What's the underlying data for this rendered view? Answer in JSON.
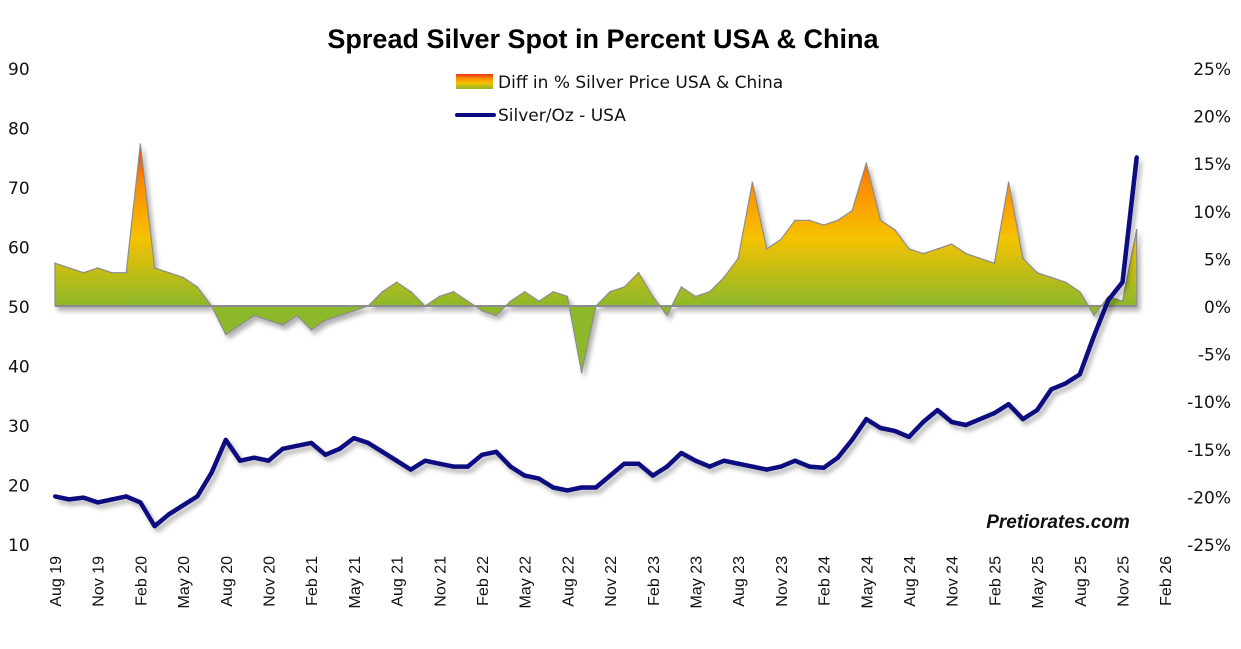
{
  "chart_data": {
    "type": "area+line",
    "title": "Spread Silver Spot in Percent USA & China",
    "x_tick_labels": [
      "Aug 19",
      "Nov 19",
      "Feb 20",
      "May 20",
      "Aug 20",
      "Nov 20",
      "Feb 21",
      "May 21",
      "Aug 21",
      "Nov 21",
      "Feb 22",
      "May 22",
      "Aug 22",
      "Nov 22",
      "Feb 23",
      "May 23",
      "Aug 23",
      "Nov 23",
      "Feb 24",
      "May 24",
      "Aug 24",
      "Nov 24",
      "Feb 25",
      "May 25",
      "Aug 25",
      "Nov 25",
      "Feb 26"
    ],
    "xlim": [
      "2019-08",
      "2026-02"
    ],
    "y_left": {
      "ylim": [
        10,
        90
      ],
      "ticks": [
        "10",
        "20",
        "30",
        "40",
        "50",
        "60",
        "70",
        "80",
        "90"
      ]
    },
    "y_right": {
      "ylim": [
        -25,
        25
      ],
      "ticks": [
        "-25%",
        "-20%",
        "-15%",
        "-10%",
        "-5%",
        "0%",
        "5%",
        "10%",
        "15%",
        "20%",
        "25%"
      ]
    },
    "grid": false,
    "legend_placement": "top-center",
    "x": [
      "2019-08",
      "2019-09",
      "2019-10",
      "2019-11",
      "2019-12",
      "2020-01",
      "2020-02",
      "2020-03",
      "2020-04",
      "2020-05",
      "2020-06",
      "2020-07",
      "2020-08",
      "2020-09",
      "2020-10",
      "2020-11",
      "2020-12",
      "2021-01",
      "2021-02",
      "2021-03",
      "2021-04",
      "2021-05",
      "2021-06",
      "2021-07",
      "2021-08",
      "2021-09",
      "2021-10",
      "2021-11",
      "2021-12",
      "2022-01",
      "2022-02",
      "2022-03",
      "2022-04",
      "2022-05",
      "2022-06",
      "2022-07",
      "2022-08",
      "2022-09",
      "2022-10",
      "2022-11",
      "2022-12",
      "2023-01",
      "2023-02",
      "2023-03",
      "2023-04",
      "2023-05",
      "2023-06",
      "2023-07",
      "2023-08",
      "2023-09",
      "2023-10",
      "2023-11",
      "2023-12",
      "2024-01",
      "2024-02",
      "2024-03",
      "2024-04",
      "2024-05",
      "2024-06",
      "2024-07",
      "2024-08",
      "2024-09",
      "2024-10",
      "2024-11",
      "2024-12",
      "2025-01",
      "2025-02",
      "2025-03",
      "2025-04",
      "2025-05",
      "2025-06",
      "2025-07",
      "2025-08",
      "2025-09",
      "2025-10",
      "2025-11",
      "2025-12"
    ],
    "series": [
      {
        "name": "Diff in % Silver Price USA & China",
        "type": "area",
        "axis": "right",
        "unit": "%",
        "values": [
          4.5,
          4,
          3.5,
          4,
          3.5,
          3.5,
          17,
          4,
          3.5,
          3,
          2,
          0,
          -3,
          -2,
          -1,
          -1.5,
          -2,
          -1,
          -2.5,
          -1.5,
          -1,
          -0.5,
          0,
          1.5,
          2.5,
          1.5,
          0,
          1,
          1.5,
          0.5,
          -0.5,
          -1,
          0.5,
          1.5,
          0.5,
          1.5,
          1,
          -7,
          0,
          1.5,
          2,
          3.5,
          1,
          -1,
          2,
          1,
          1.5,
          3,
          5,
          13,
          6,
          7,
          9,
          9,
          8.5,
          9,
          10,
          15,
          9,
          8,
          6,
          5.5,
          6,
          6.5,
          5.5,
          5,
          4.5,
          13,
          5,
          3.5,
          3,
          2.5,
          1.5,
          -1,
          1,
          0.5,
          8
        ]
      },
      {
        "name": "Silver/Oz - USA",
        "type": "line",
        "axis": "left",
        "color": "#0A0A80",
        "values": [
          18,
          17.5,
          17.8,
          17,
          17.5,
          18,
          17,
          13,
          15,
          16.5,
          18,
          22,
          27.5,
          24,
          24.5,
          24,
          26,
          26.5,
          27,
          25,
          26,
          27.8,
          27,
          25.5,
          24,
          22.5,
          24,
          23.5,
          23,
          23,
          25,
          25.5,
          23,
          21.5,
          21,
          19.5,
          19,
          19.5,
          19.5,
          21.5,
          23.5,
          23.5,
          21.5,
          23,
          25.3,
          24,
          23,
          24,
          23.5,
          23,
          22.5,
          23,
          24,
          23,
          22.8,
          24.5,
          27.5,
          31,
          29.5,
          29,
          28,
          30.5,
          32.5,
          30.5,
          30,
          31,
          32,
          33.5,
          31,
          32.5,
          36,
          37,
          38.5,
          45,
          51,
          54,
          75
        ]
      }
    ],
    "colors": {
      "area_low": "#8DB82A",
      "area_mid": "#F5C200",
      "area_high": "#FF8C00",
      "area_peak": "#E8301A",
      "area_outline": "#8C8C8C",
      "line": "#0A0A80"
    }
  },
  "watermark": "Pretiorates.com"
}
